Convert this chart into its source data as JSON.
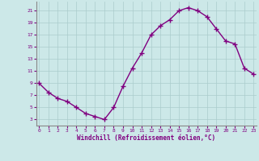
{
  "x": [
    0,
    1,
    2,
    3,
    4,
    5,
    6,
    7,
    8,
    9,
    10,
    11,
    12,
    13,
    14,
    15,
    16,
    17,
    18,
    19,
    20,
    21,
    22,
    23
  ],
  "y": [
    9,
    7.5,
    6.5,
    6,
    5,
    4,
    3.5,
    3,
    5,
    8.5,
    11.5,
    14,
    17,
    18.5,
    19.5,
    21,
    21.5,
    21,
    20,
    18,
    16,
    15.5,
    11.5,
    10.5
  ],
  "line_color": "#800080",
  "marker": "+",
  "marker_size": 4,
  "bg_color": "#cce8e8",
  "grid_color": "#aacccc",
  "xlabel": "Windchill (Refroidissement éolien,°C)",
  "xlabel_color": "#800080",
  "tick_color": "#800080",
  "yticks": [
    3,
    5,
    7,
    9,
    11,
    13,
    15,
    17,
    19,
    21
  ],
  "xticks": [
    0,
    1,
    2,
    3,
    4,
    5,
    6,
    7,
    8,
    9,
    10,
    11,
    12,
    13,
    14,
    15,
    16,
    17,
    18,
    19,
    20,
    21,
    22,
    23
  ],
  "ylim": [
    2,
    22.5
  ],
  "xlim": [
    -0.3,
    23.3
  ]
}
